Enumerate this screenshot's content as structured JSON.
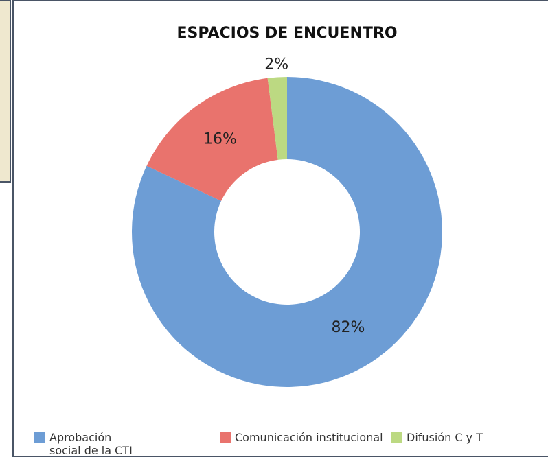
{
  "chart_data": {
    "type": "donut",
    "title": "ESPACIOS DE ENCUENTRO",
    "categories": [
      "Aprobación social de la CTI",
      "Comunicación institucional",
      "Difusión C y T"
    ],
    "values": [
      82,
      16,
      2
    ],
    "value_labels": [
      "82%",
      "16%",
      "2%"
    ],
    "colors": [
      "#6d9dd5",
      "#e9736d",
      "#bcd982"
    ]
  }
}
